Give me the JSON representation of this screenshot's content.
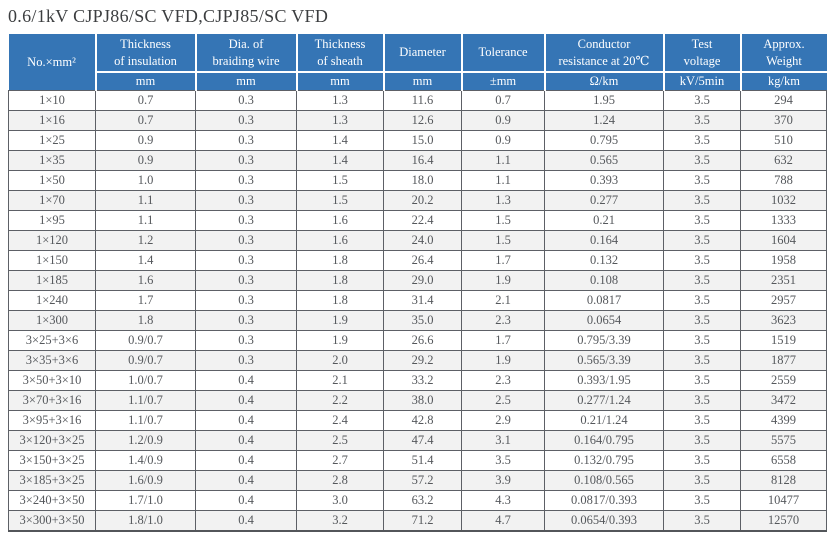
{
  "title": "0.6/1kV CJPJ86/SC VFD,CJPJ85/SC VFD",
  "table": {
    "columns": [
      {
        "label": "No.×mm²",
        "unit": ""
      },
      {
        "label": "Thickness\nof insulation",
        "unit": "mm"
      },
      {
        "label": "Dia. of\nbraiding wire",
        "unit": "mm"
      },
      {
        "label": "Thickness\nof sheath",
        "unit": "mm"
      },
      {
        "label": "Diameter",
        "unit": "mm"
      },
      {
        "label": "Tolerance",
        "unit": "±mm"
      },
      {
        "label": "Conductor\nresistance at 20℃",
        "unit": "Ω/km"
      },
      {
        "label": "Test\nvoltage",
        "unit": "kV/5min"
      },
      {
        "label": "Approx.\nWeight",
        "unit": "kg/km"
      }
    ],
    "rows": [
      [
        "1×10",
        "0.7",
        "0.3",
        "1.3",
        "11.6",
        "0.7",
        "1.95",
        "3.5",
        "294"
      ],
      [
        "1×16",
        "0.7",
        "0.3",
        "1.3",
        "12.6",
        "0.9",
        "1.24",
        "3.5",
        "370"
      ],
      [
        "1×25",
        "0.9",
        "0.3",
        "1.4",
        "15.0",
        "0.9",
        "0.795",
        "3.5",
        "510"
      ],
      [
        "1×35",
        "0.9",
        "0.3",
        "1.4",
        "16.4",
        "1.1",
        "0.565",
        "3.5",
        "632"
      ],
      [
        "1×50",
        "1.0",
        "0.3",
        "1.5",
        "18.0",
        "1.1",
        "0.393",
        "3.5",
        "788"
      ],
      [
        "1×70",
        "1.1",
        "0.3",
        "1.5",
        "20.2",
        "1.3",
        "0.277",
        "3.5",
        "1032"
      ],
      [
        "1×95",
        "1.1",
        "0.3",
        "1.6",
        "22.4",
        "1.5",
        "0.21",
        "3.5",
        "1333"
      ],
      [
        "1×120",
        "1.2",
        "0.3",
        "1.6",
        "24.0",
        "1.5",
        "0.164",
        "3.5",
        "1604"
      ],
      [
        "1×150",
        "1.4",
        "0.3",
        "1.8",
        "26.4",
        "1.7",
        "0.132",
        "3.5",
        "1958"
      ],
      [
        "1×185",
        "1.6",
        "0.3",
        "1.8",
        "29.0",
        "1.9",
        "0.108",
        "3.5",
        "2351"
      ],
      [
        "1×240",
        "1.7",
        "0.3",
        "1.8",
        "31.4",
        "2.1",
        "0.0817",
        "3.5",
        "2957"
      ],
      [
        "1×300",
        "1.8",
        "0.3",
        "1.9",
        "35.0",
        "2.3",
        "0.0654",
        "3.5",
        "3623"
      ],
      [
        "3×25+3×6",
        "0.9/0.7",
        "0.3",
        "1.9",
        "26.6",
        "1.7",
        "0.795/3.39",
        "3.5",
        "1519"
      ],
      [
        "3×35+3×6",
        "0.9/0.7",
        "0.3",
        "2.0",
        "29.2",
        "1.9",
        "0.565/3.39",
        "3.5",
        "1877"
      ],
      [
        "3×50+3×10",
        "1.0/0.7",
        "0.4",
        "2.1",
        "33.2",
        "2.3",
        "0.393/1.95",
        "3.5",
        "2559"
      ],
      [
        "3×70+3×16",
        "1.1/0.7",
        "0.4",
        "2.2",
        "38.0",
        "2.5",
        "0.277/1.24",
        "3.5",
        "3472"
      ],
      [
        "3×95+3×16",
        "1.1/0.7",
        "0.4",
        "2.4",
        "42.8",
        "2.9",
        "0.21/1.24",
        "3.5",
        "4399"
      ],
      [
        "3×120+3×25",
        "1.2/0.9",
        "0.4",
        "2.5",
        "47.4",
        "3.1",
        "0.164/0.795",
        "3.5",
        "5575"
      ],
      [
        "3×150+3×25",
        "1.4/0.9",
        "0.4",
        "2.7",
        "51.4",
        "3.5",
        "0.132/0.795",
        "3.5",
        "6558"
      ],
      [
        "3×185+3×25",
        "1.6/0.9",
        "0.4",
        "2.8",
        "57.2",
        "3.9",
        "0.108/0.565",
        "3.5",
        "8128"
      ],
      [
        "3×240+3×50",
        "1.7/1.0",
        "0.4",
        "3.0",
        "63.2",
        "4.3",
        "0.0817/0.393",
        "3.5",
        "10477"
      ],
      [
        "3×300+3×50",
        "1.8/1.0",
        "0.4",
        "3.2",
        "71.2",
        "4.7",
        "0.0654/0.393",
        "3.5",
        "12570"
      ]
    ]
  },
  "colors": {
    "header_bg": "#3575b5",
    "header_text": "#ffffff",
    "row_alt_bg": "#f2f2f2",
    "border": "#5d6066",
    "data_text": "#55585c",
    "title_text": "#3c3e40"
  }
}
